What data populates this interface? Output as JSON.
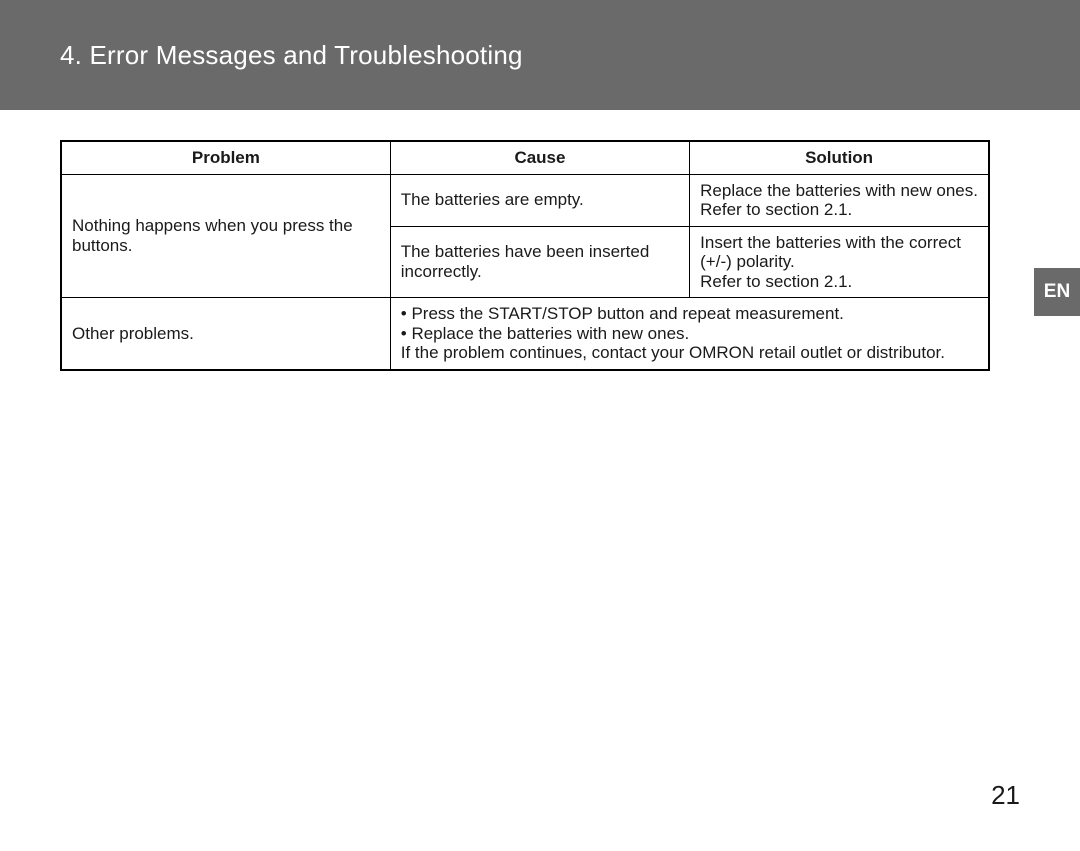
{
  "header": {
    "title": "4. Error Messages and Troubleshooting"
  },
  "language_tab": "EN",
  "page_number": "21",
  "table": {
    "columns": [
      "Problem",
      "Cause",
      "Solution"
    ],
    "row1": {
      "problem": "Nothing happens when you press the buttons.",
      "cause_a": "The batteries are empty.",
      "solution_a": "Replace the batteries with new ones.\nRefer to section 2.1.",
      "cause_b": "The batteries have been inserted incorrectly.",
      "solution_b": "Insert the batteries with the correct (+/-) polarity.\nRefer to section 2.1."
    },
    "row2": {
      "problem": "Other problems.",
      "merged": "• Press the START/STOP button and repeat measurement.\n• Replace the batteries with new ones.\nIf the problem continues, contact your OMRON retail outlet or distributor."
    }
  }
}
